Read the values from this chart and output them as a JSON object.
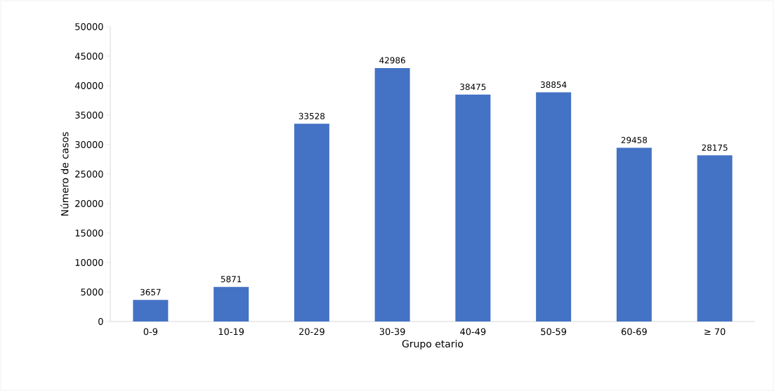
{
  "chart_data": {
    "type": "bar",
    "xlabel": "Grupo etario",
    "ylabel": "Número de casos",
    "categories": [
      "0-9",
      "10-19",
      "20-29",
      "30-39",
      "40-49",
      "50-59",
      "60-69",
      "≥ 70"
    ],
    "values": [
      3657,
      5871,
      33528,
      42986,
      38475,
      38854,
      29458,
      28175
    ],
    "color": "#4472c4",
    "ylim": [
      0,
      50000
    ],
    "yticks": [
      0,
      5000,
      10000,
      15000,
      20000,
      25000,
      30000,
      35000,
      40000,
      45000,
      50000
    ],
    "data_labels": true,
    "grid": false
  }
}
